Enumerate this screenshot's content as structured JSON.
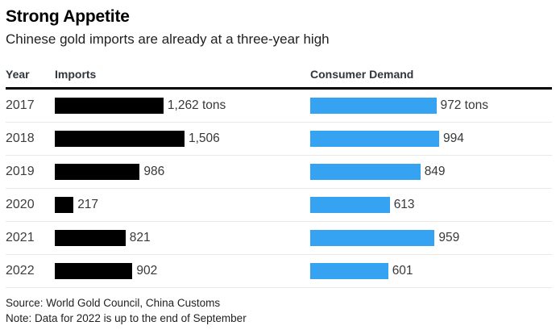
{
  "header": {
    "title": "Strong Appetite",
    "subtitle": "Chinese gold imports are already at a three-year high"
  },
  "table": {
    "columns": [
      "Year",
      "Imports",
      "Consumer Demand"
    ]
  },
  "chart_data": {
    "type": "bar",
    "orientation": "horizontal",
    "title": "Strong Appetite",
    "subtitle": "Chinese gold imports are already at a three-year high",
    "categories": [
      "2017",
      "2018",
      "2019",
      "2020",
      "2021",
      "2022"
    ],
    "series": [
      {
        "name": "Imports",
        "unit": "tons",
        "color": "#000000",
        "values": [
          1262,
          1506,
          986,
          217,
          821,
          902
        ],
        "labels": [
          "1,262 tons",
          "1,506",
          "986",
          "217",
          "821",
          "902"
        ]
      },
      {
        "name": "Consumer Demand",
        "unit": "tons",
        "color": "#35a2f2",
        "values": [
          972,
          994,
          849,
          613,
          959,
          601
        ],
        "labels": [
          "972 tons",
          "994",
          "849",
          "613",
          "959",
          "601"
        ]
      }
    ],
    "layout_hint": "two side-by-side bar columns, each scaled to its own column maximum, value labels at bar ends, no gridlines, no legend"
  },
  "footer": {
    "source": "Source: World Gold Council, China Customs",
    "note": "Note: Data for 2022 is up to the end of September"
  },
  "colors": {
    "imports_bar": "#000000",
    "demand_bar": "#35a2f2",
    "header_rule": "#000000",
    "row_divider": "#e9e9e9"
  }
}
